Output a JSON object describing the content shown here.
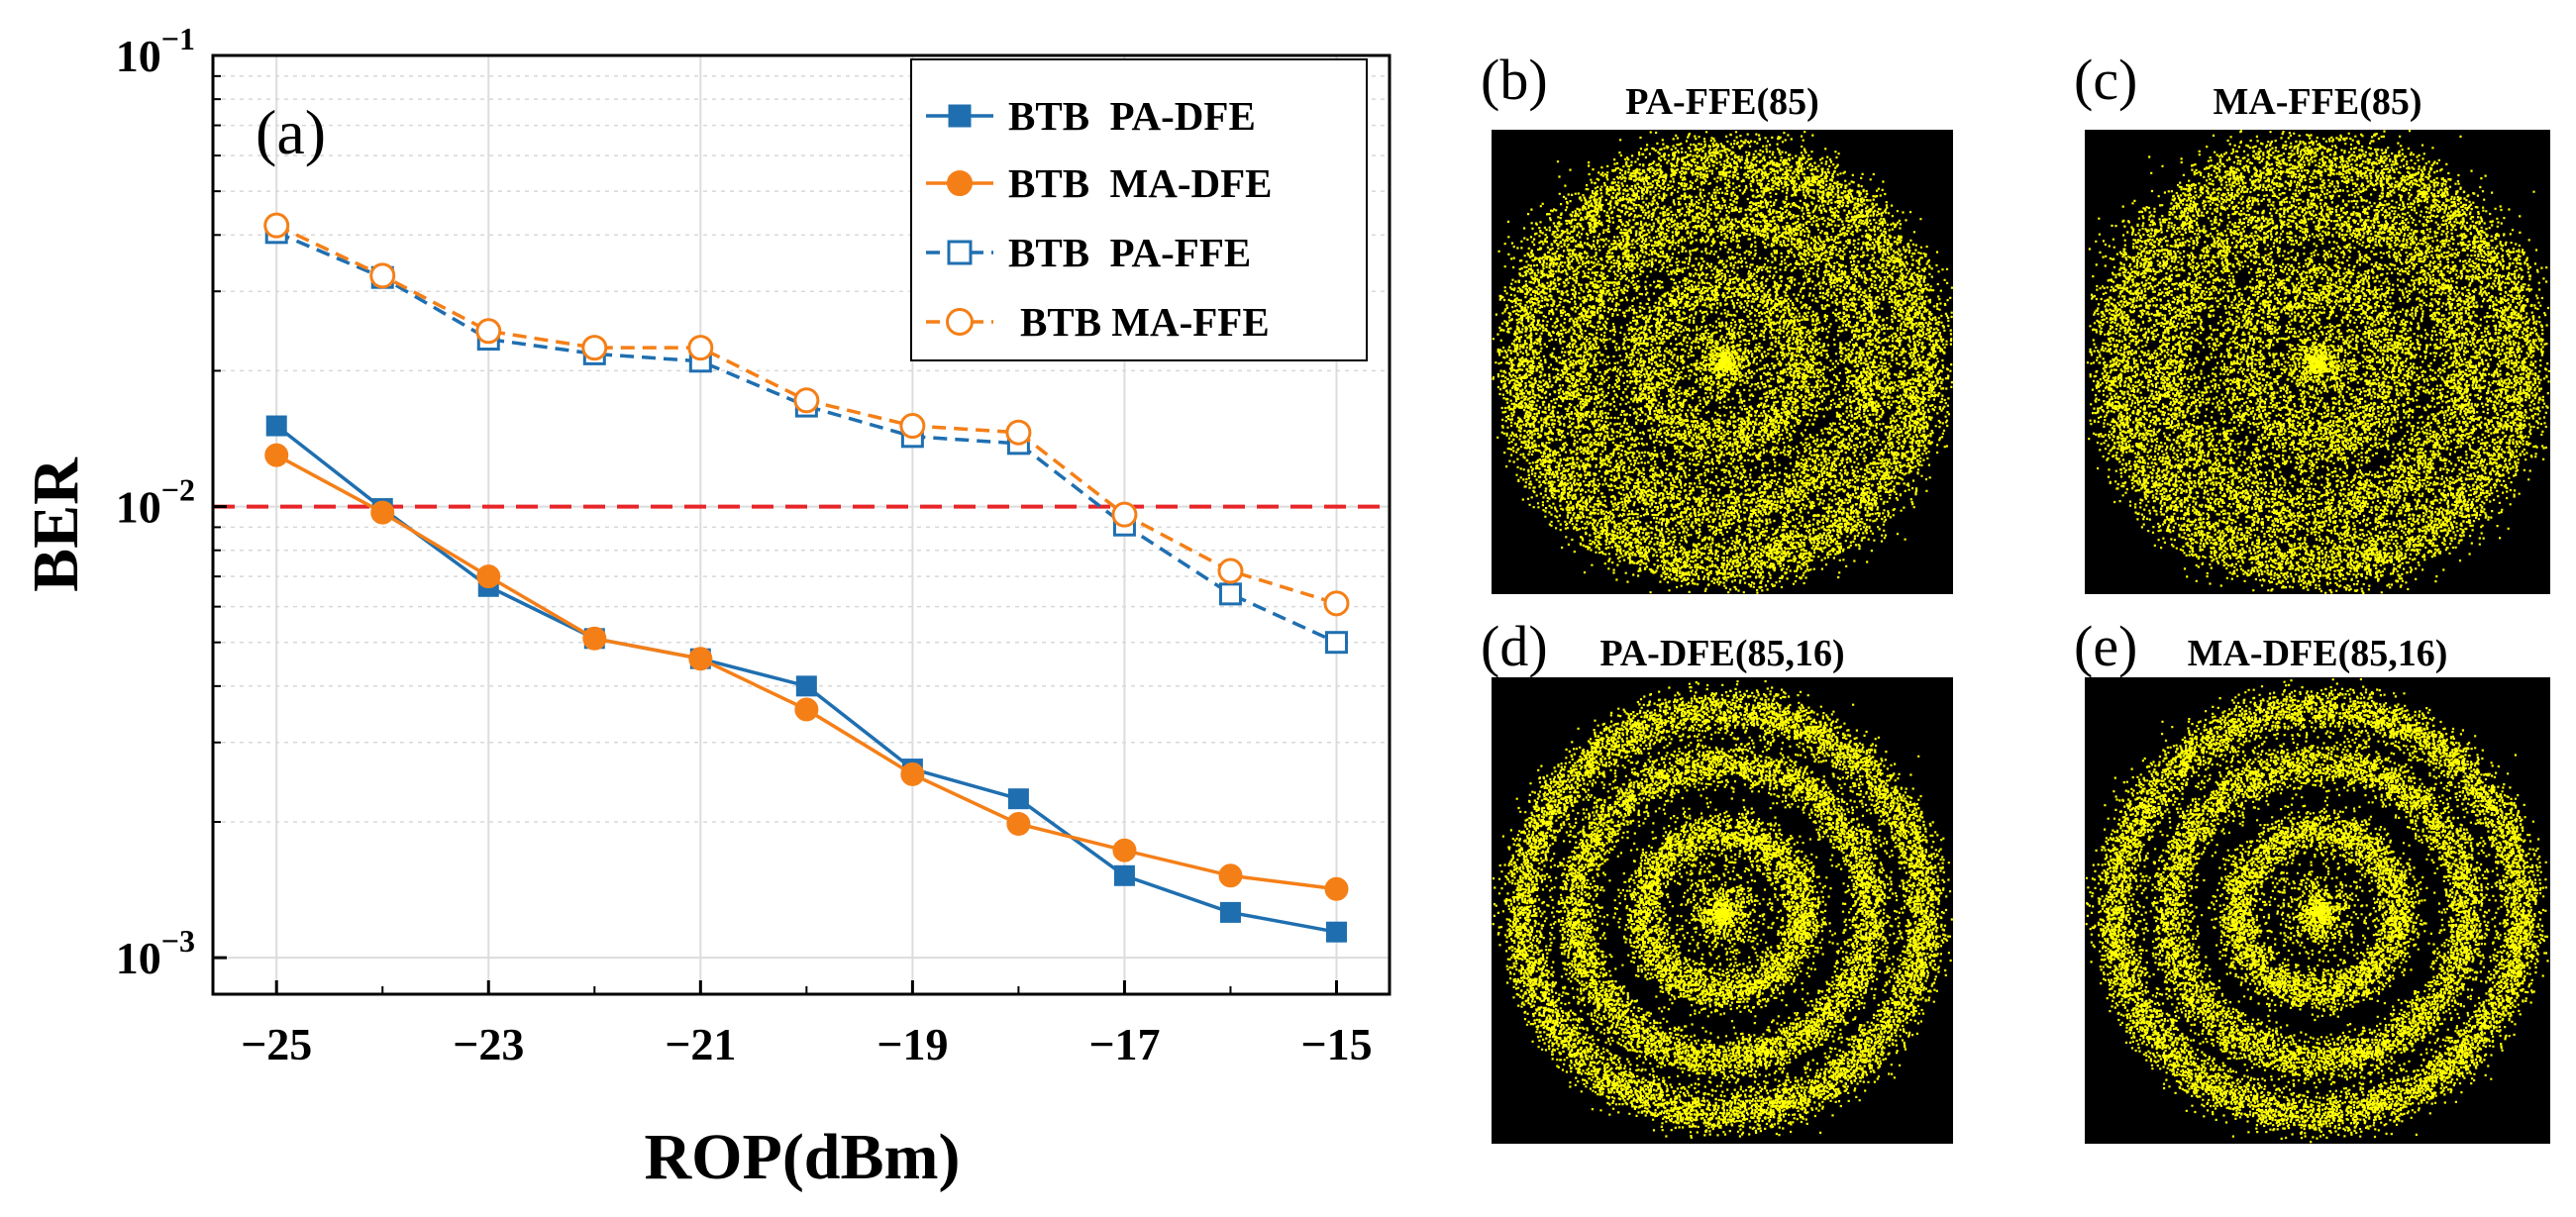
{
  "chart_data": [
    {
      "type": "line",
      "panel_label": "(a)",
      "title": "",
      "xlabel": "ROP(dBm)",
      "ylabel": "BER",
      "xlim": [
        -25.6,
        -14.5
      ],
      "ylim": [
        0.00083,
        0.1
      ],
      "yscale": "log",
      "x_ticks": [
        -25,
        -23,
        -21,
        -19,
        -17,
        -15
      ],
      "x_tick_labels": [
        "−25",
        "−23",
        "−21",
        "−19",
        "−17",
        "−15"
      ],
      "y_ticks": [
        {
          "value": 0.1,
          "base": "10",
          "exp": "−1"
        },
        {
          "value": 0.01,
          "base": "10",
          "exp": "−2"
        },
        {
          "value": 0.001,
          "base": "10",
          "exp": "−3"
        }
      ],
      "grid": true,
      "legend_position": "top-right",
      "threshold": {
        "value": 0.01,
        "color": "#e8262a",
        "style": "dashed"
      },
      "x": [
        -25,
        -24,
        -23,
        -22,
        -21,
        -20,
        -19,
        -18,
        -17,
        -16,
        -15
      ],
      "series": [
        {
          "name": "BTB  PA-DFE",
          "color": "#1f6fb0",
          "marker": "square-filled",
          "line": "solid",
          "values": [
            0.0151,
            0.0099,
            0.00665,
            0.0051,
            0.0046,
            0.004,
            0.00262,
            0.00225,
            0.00152,
            0.00126,
            0.00114
          ]
        },
        {
          "name": "BTB  MA-DFE",
          "color": "#f57f17",
          "marker": "circle-filled",
          "line": "solid",
          "values": [
            0.013,
            0.0097,
            0.007,
            0.0051,
            0.0046,
            0.00355,
            0.00255,
            0.00198,
            0.00173,
            0.00152,
            0.00142
          ]
        },
        {
          "name": "BTB  PA-FFE",
          "color": "#1f6fb0",
          "marker": "square-open",
          "line": "dashed",
          "values": [
            0.0405,
            0.0322,
            0.0235,
            0.0218,
            0.021,
            0.0167,
            0.0143,
            0.0138,
            0.0091,
            0.0064,
            0.005
          ]
        },
        {
          "name": "BTB MA-FFE",
          "color": "#f57f17",
          "marker": "circle-open",
          "line": "dashed",
          "values": [
            0.042,
            0.0325,
            0.0245,
            0.0225,
            0.0225,
            0.0172,
            0.0151,
            0.0146,
            0.0096,
            0.0072,
            0.0061
          ]
        }
      ]
    },
    {
      "type": "scatter",
      "description_label": "(b)",
      "title": "PA-FFE(85)",
      "background": "#000000",
      "point_color": "#ffff00",
      "ring_radii": [
        0.03,
        0.36,
        0.66,
        0.9
      ],
      "ring_spread": [
        0.095,
        0.085,
        0.075,
        0.07
      ]
    },
    {
      "type": "scatter",
      "description_label": "(c)",
      "title": "MA-FFE(85)",
      "background": "#000000",
      "point_color": "#ffff00",
      "ring_radii": [
        0.03,
        0.36,
        0.66,
        0.9
      ],
      "ring_spread": [
        0.1,
        0.09,
        0.08,
        0.075
      ]
    },
    {
      "type": "scatter",
      "description_label": "(d)",
      "title": "PA-DFE(85,16)",
      "background": "#000000",
      "point_color": "#ffff00",
      "ring_radii": [
        0.03,
        0.36,
        0.66,
        0.9
      ],
      "ring_spread": [
        0.055,
        0.05,
        0.05,
        0.05
      ]
    },
    {
      "type": "scatter",
      "description_label": "(e)",
      "title": "MA-DFE(85,16)",
      "background": "#000000",
      "point_color": "#ffff00",
      "ring_radii": [
        0.03,
        0.36,
        0.66,
        0.9
      ],
      "ring_spread": [
        0.055,
        0.05,
        0.05,
        0.05
      ]
    }
  ]
}
